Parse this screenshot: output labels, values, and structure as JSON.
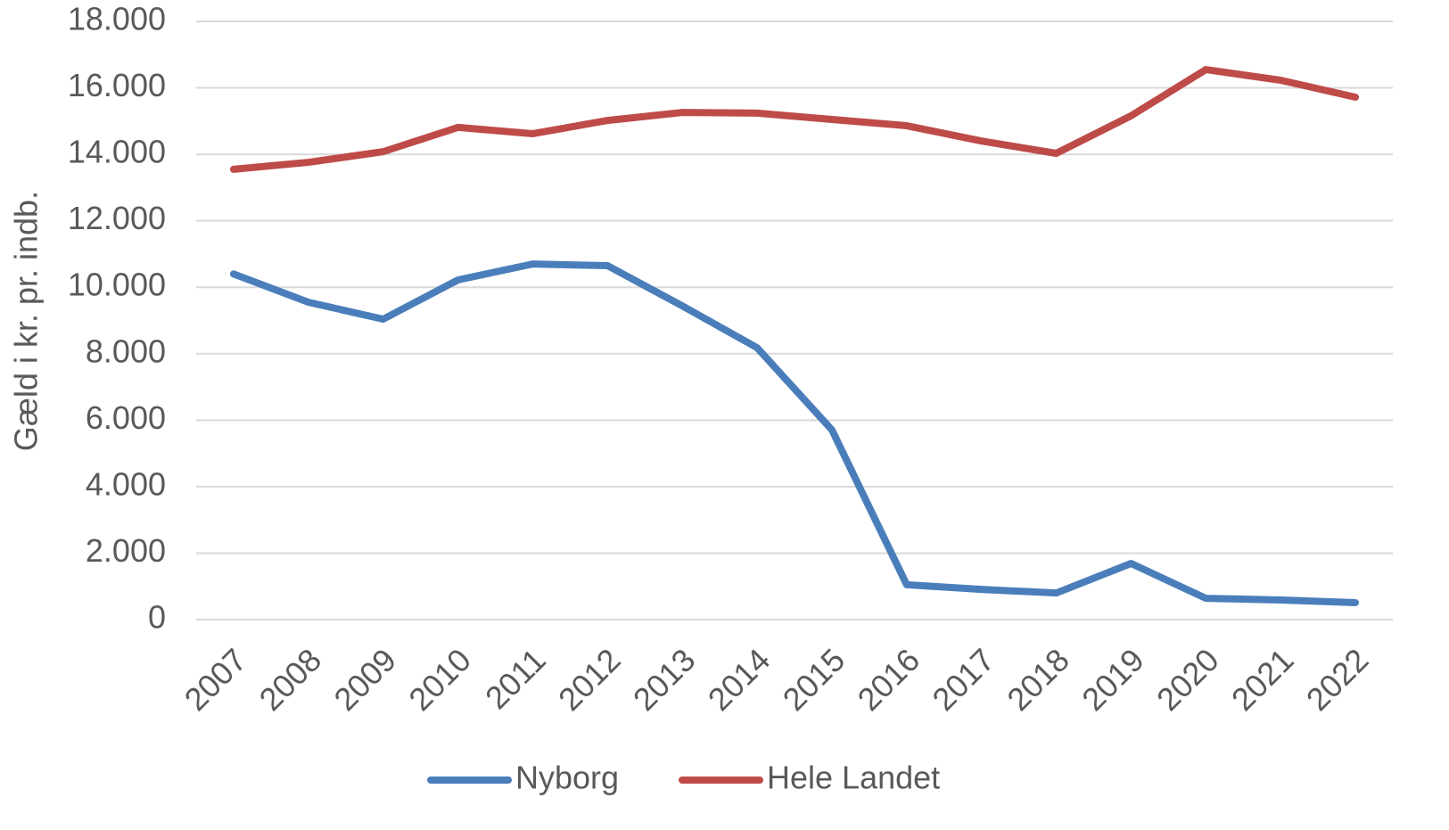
{
  "chart_data": {
    "type": "line",
    "y_label": "Gæld i kr. pr. indb.",
    "categories": [
      "2007",
      "2008",
      "2009",
      "2010",
      "2011",
      "2012",
      "2013",
      "2014",
      "2015",
      "2016",
      "2017",
      "2018",
      "2019",
      "2020",
      "2021",
      "2022"
    ],
    "series": [
      {
        "name": "Nyborg",
        "color": "#4a7ebb",
        "values": [
          10400,
          9550,
          9040,
          10220,
          10700,
          10650,
          9440,
          8180,
          5710,
          1050,
          910,
          800,
          1690,
          640,
          590,
          510
        ]
      },
      {
        "name": "Hele Landet",
        "color": "#be4b48",
        "values": [
          13550,
          13760,
          14080,
          14810,
          14620,
          15020,
          15260,
          15240,
          15050,
          14860,
          14400,
          14030,
          15160,
          16550,
          16230,
          15720
        ]
      }
    ],
    "ylim": [
      0,
      18000
    ],
    "yticks": [
      0,
      {
        "value": 2000,
        "label": "2.000"
      },
      {
        "value": 4000,
        "label": "4.000"
      },
      {
        "value": 6000,
        "label": "6.000"
      },
      {
        "value": 8000,
        "label": "8.000"
      },
      {
        "value": 10000,
        "label": "10.000"
      },
      {
        "value": 12000,
        "label": "12.000"
      },
      {
        "value": 14000,
        "label": "14.000"
      },
      {
        "value": 16000,
        "label": "16.000"
      },
      {
        "value": 18000,
        "label": "18.000"
      }
    ],
    "grid": true,
    "legend": "bottom"
  }
}
